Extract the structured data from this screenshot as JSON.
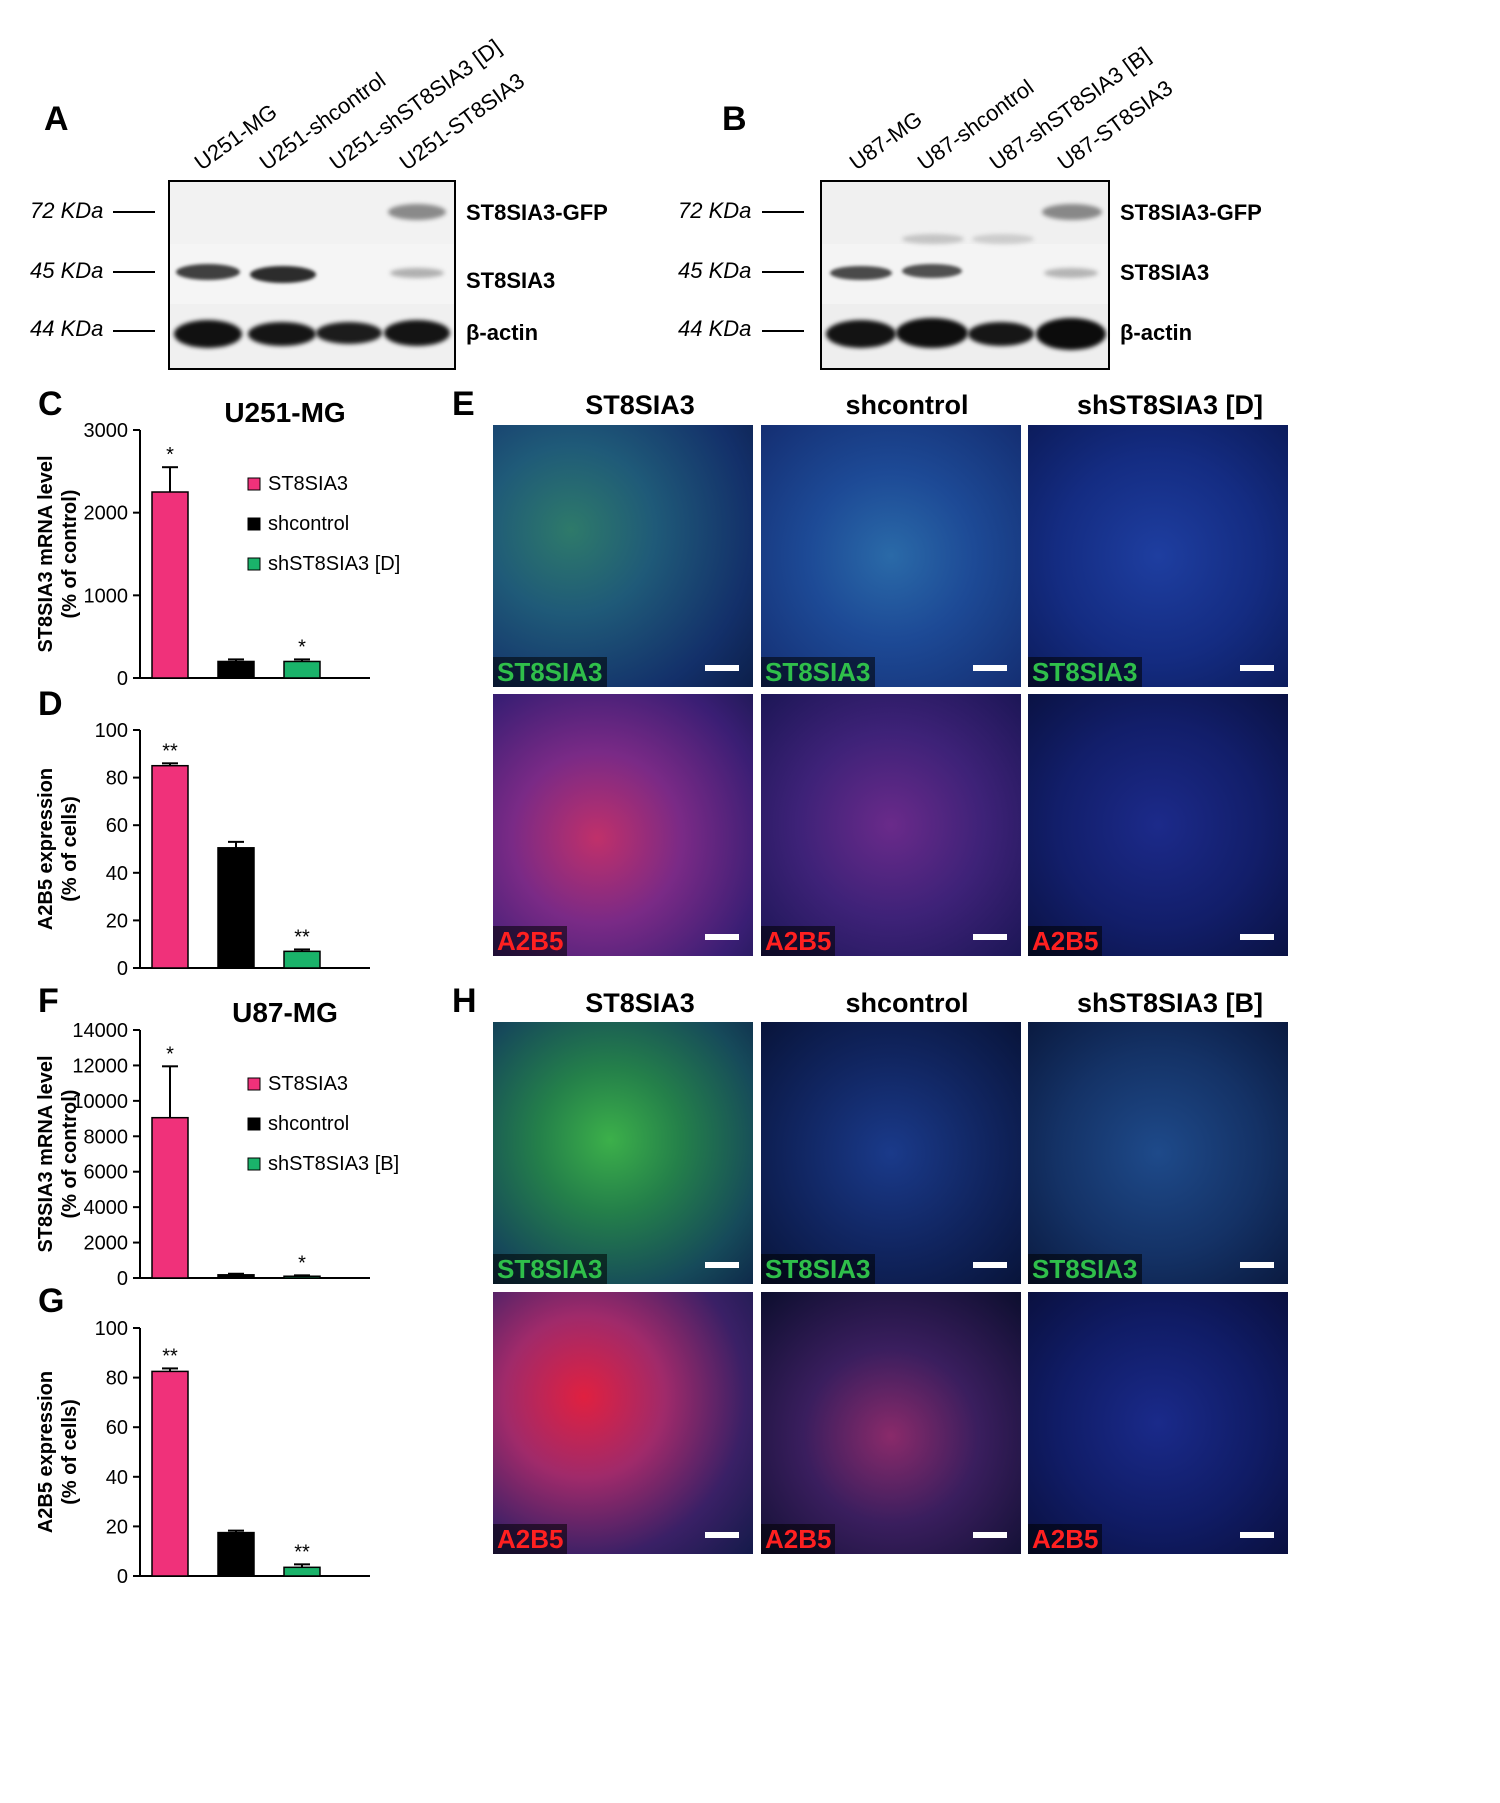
{
  "panels": {
    "A": "A",
    "B": "B",
    "C": "C",
    "D": "D",
    "E": "E",
    "F": "F",
    "G": "G",
    "H": "H"
  },
  "blot_a": {
    "lanes": [
      "U251-MG",
      "U251-shcontrol",
      "U251-shST8SIA3 [D]",
      "U251-ST8SIA3"
    ],
    "markers": [
      "72 KDa",
      "45 KDa",
      "44 KDa"
    ],
    "bands": [
      "ST8SIA3-GFP",
      "ST8SIA3",
      "β-actin"
    ]
  },
  "blot_b": {
    "lanes": [
      "U87-MG",
      "U87-shcontrol",
      "U87-shST8SIA3 [B]",
      "U87-ST8SIA3"
    ],
    "markers": [
      "72 KDa",
      "45 KDa",
      "44 KDa"
    ],
    "bands": [
      "ST8SIA3-GFP",
      "ST8SIA3",
      "β-actin"
    ]
  },
  "colors": {
    "st8sia3": "#f0317a",
    "shcontrol": "#000000",
    "knockdown": "#1ab36a",
    "green_stain": "#27a84a",
    "red_stain": "#ff1a1a"
  },
  "chart_data": [
    {
      "id": "C",
      "type": "bar",
      "title": "U251-MG",
      "ylabel": [
        "ST8SIA3 mRNA level",
        "(% of control)"
      ],
      "ylim": [
        0,
        3000
      ],
      "yticks": [
        0,
        1000,
        2000,
        3000
      ],
      "categories": [
        "ST8SIA3",
        "shcontrol",
        "shST8SIA3 [D]"
      ],
      "values": [
        2250,
        200,
        200
      ],
      "errors": [
        300,
        25,
        25
      ],
      "significance": [
        "*",
        "",
        "*"
      ],
      "legend": [
        "ST8SIA3",
        "shcontrol",
        "shST8SIA3 [D]"
      ]
    },
    {
      "id": "D",
      "type": "bar",
      "title": "",
      "ylabel": [
        "A2B5 expression",
        "(% of cells)"
      ],
      "ylim": [
        0,
        100
      ],
      "yticks": [
        0,
        20,
        40,
        60,
        80,
        100
      ],
      "categories": [
        "ST8SIA3",
        "shcontrol",
        "shST8SIA3 [D]"
      ],
      "values": [
        85,
        50.5,
        7
      ],
      "errors": [
        1,
        2.5,
        0.8
      ],
      "significance": [
        "**",
        "",
        "**"
      ],
      "legend": []
    },
    {
      "id": "F",
      "type": "bar",
      "title": "U87-MG",
      "ylabel": [
        "ST8SIA3 mRNA level",
        "(% of control)"
      ],
      "ylim": [
        0,
        14000
      ],
      "yticks": [
        0,
        2000,
        4000,
        6000,
        8000,
        10000,
        12000,
        14000
      ],
      "categories": [
        "ST8SIA3",
        "shcontrol",
        "shST8SIA3 [B]"
      ],
      "values": [
        9050,
        180,
        100
      ],
      "errors": [
        2900,
        60,
        50
      ],
      "significance": [
        "*",
        "",
        "*"
      ],
      "legend": [
        "ST8SIA3",
        "shcontrol",
        "shST8SIA3 [B]"
      ]
    },
    {
      "id": "G",
      "type": "bar",
      "title": "",
      "ylabel": [
        "A2B5 expression",
        "(% of cells)"
      ],
      "ylim": [
        0,
        100
      ],
      "yticks": [
        0,
        20,
        40,
        60,
        80,
        100
      ],
      "categories": [
        "ST8SIA3",
        "shcontrol",
        "shST8SIA3 [B]"
      ],
      "values": [
        82.5,
        17.5,
        3.5
      ],
      "errors": [
        1.2,
        0.8,
        1.2
      ],
      "significance": [
        "**",
        "",
        "**"
      ],
      "legend": []
    }
  ],
  "micrographs_e": {
    "columns": [
      "ST8SIA3",
      "shcontrol",
      "shST8SIA3 [D]"
    ],
    "row_labels": [
      "ST8SIA3",
      "A2B5"
    ]
  },
  "micrographs_h": {
    "columns": [
      "ST8SIA3",
      "shcontrol",
      "shST8SIA3 [B]"
    ],
    "row_labels": [
      "ST8SIA3",
      "A2B5"
    ]
  }
}
